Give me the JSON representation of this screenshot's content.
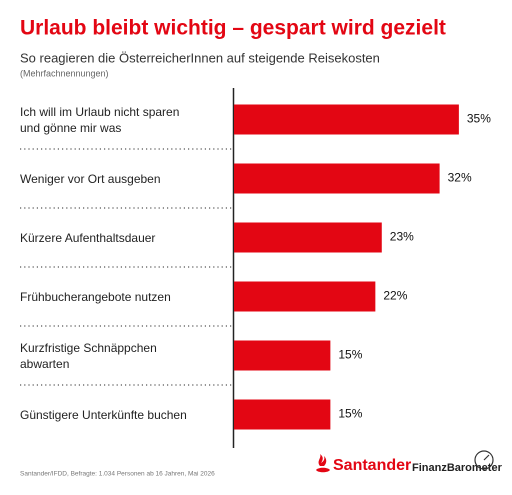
{
  "chart_data": {
    "type": "barh",
    "title": "Urlaub bleibt wichtig – gespart wird gezielt",
    "subtitle": "So reagieren die ÖsterreicherInnen auf steigende Reisekosten",
    "note": "(Mehrfachnennungen)",
    "categories": [
      "Ich will im Urlaub nicht sparen\nund gönne mir was",
      "Weniger vor Ort ausgeben",
      "Kürzere Aufenthaltsdauer",
      "Frühbucherangebote nutzen",
      "Kurzfristige Schnäppchen\nabwarten",
      "Günstigere Unterkünfte buchen"
    ],
    "values": [
      35,
      32,
      23,
      22,
      15,
      15
    ],
    "value_labels": [
      "35%",
      "32%",
      "23%",
      "22%",
      "15%",
      "15%"
    ],
    "color": "#e30613",
    "xlim": [
      0,
      40
    ],
    "source": "Santander/IFDD, Befragte: 1.034 Personen ab 16 Jahren, Mai 2026",
    "brand": "Santander",
    "product": "FinanzBarometer"
  }
}
